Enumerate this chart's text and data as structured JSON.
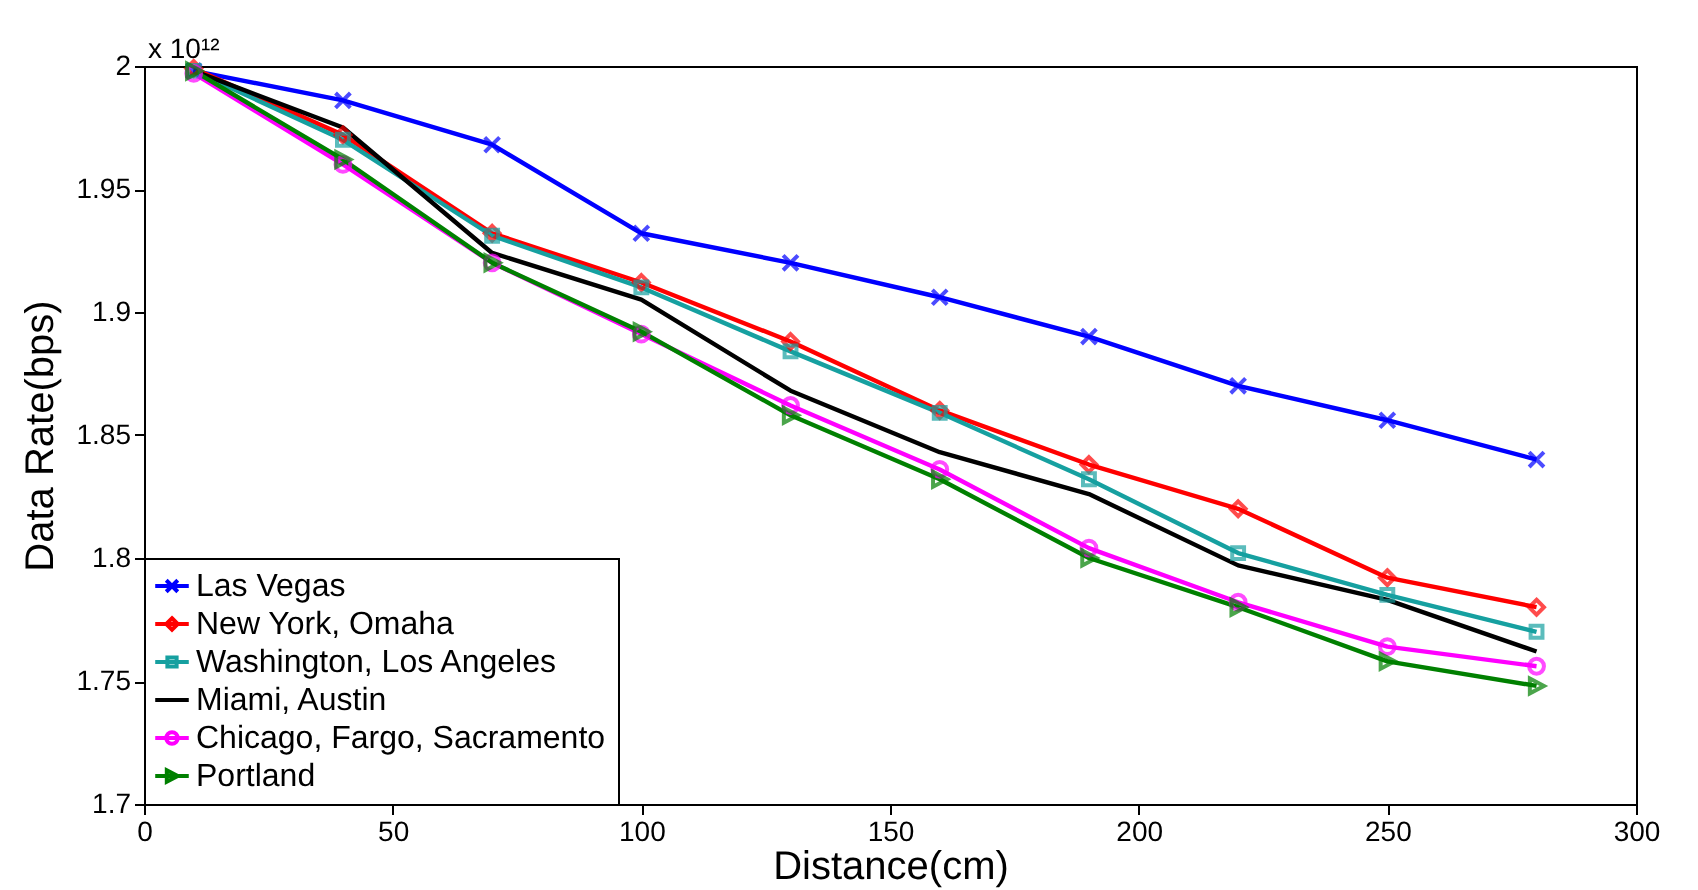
{
  "chart_data": {
    "type": "line",
    "xlabel": "Distance(cm)",
    "ylabel": "Data Rate(bps)",
    "x": [
      10,
      40,
      70,
      100,
      130,
      160,
      190,
      220,
      250,
      280
    ],
    "xlim": [
      0,
      300
    ],
    "xticks": [
      0,
      50,
      100,
      150,
      200,
      250,
      300
    ],
    "ylim": [
      1.7,
      2
    ],
    "yticks": [
      1.7,
      1.75,
      1.8,
      1.85,
      1.9,
      1.95,
      2
    ],
    "grid": false,
    "legend": "bottom left",
    "line_style": "solid",
    "annotations": [
      "x 10¹²"
    ],
    "series": [
      {
        "name": "Las Vegas",
        "color": "#0000ff",
        "marker": "cross",
        "values": [
          1.998,
          1.986,
          1.968,
          1.932,
          1.92,
          1.906,
          1.89,
          1.87,
          1.856,
          1.84
        ]
      },
      {
        "name": "New York, Omaha",
        "color": "#ff0000",
        "marker": "diamond",
        "values": [
          1.999,
          1.972,
          1.932,
          1.912,
          1.888,
          1.86,
          1.838,
          1.82,
          1.792,
          1.78
        ]
      },
      {
        "name": "Washington, Los Angeles",
        "color": "#16a0a0",
        "marker": "square",
        "values": [
          1.998,
          1.97,
          1.931,
          1.91,
          1.884,
          1.859,
          1.832,
          1.802,
          1.785,
          1.77
        ]
      },
      {
        "name": "Miami, Austin",
        "color": "#000000",
        "marker": "none",
        "values": [
          1.998,
          1.975,
          1.924,
          1.905,
          1.868,
          1.843,
          1.826,
          1.797,
          1.783,
          1.762
        ]
      },
      {
        "name": "Chicago, Fargo, Sacramento",
        "color": "#ff00ff",
        "marker": "circle",
        "values": [
          1.997,
          1.96,
          1.92,
          1.891,
          1.862,
          1.836,
          1.804,
          1.782,
          1.764,
          1.756
        ]
      },
      {
        "name": "Portland",
        "color": "#008000",
        "marker": "triangle",
        "values": [
          1.998,
          1.962,
          1.92,
          1.892,
          1.858,
          1.832,
          1.8,
          1.78,
          1.758,
          1.748
        ]
      }
    ]
  }
}
